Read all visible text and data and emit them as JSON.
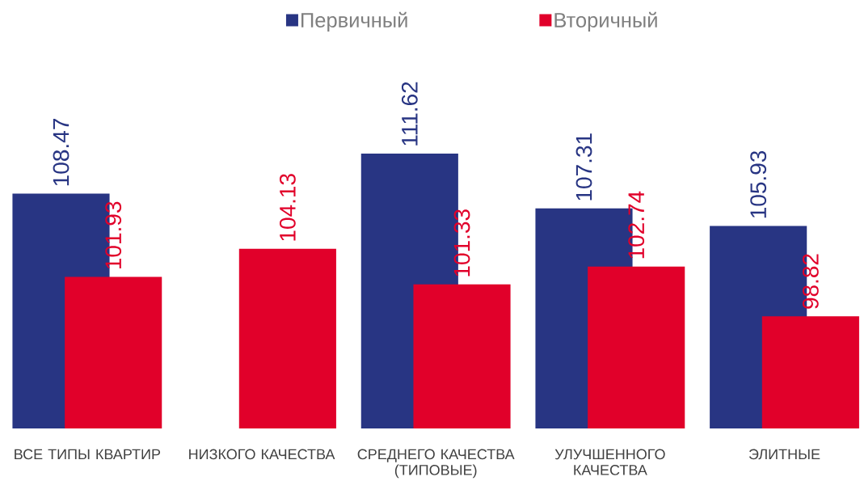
{
  "chart_data": {
    "type": "bar",
    "categories": [
      "ВСЕ ТИПЫ КВАРТИР",
      "НИЗКОГО КАЧЕСТВА",
      "СРЕДНЕГО КАЧЕСТВА (ТИПОВЫЕ)",
      "УЛУЧШЕННОГО КАЧЕСТВА",
      "ЭЛИТНЫЕ"
    ],
    "series": [
      {
        "name": "Первичный",
        "color": "#283583",
        "values": [
          108.47,
          null,
          111.62,
          107.31,
          105.93
        ]
      },
      {
        "name": "Вторичный",
        "color": "#e1002a",
        "values": [
          101.93,
          104.13,
          101.33,
          102.74,
          98.82
        ]
      }
    ],
    "ylim": [
      90,
      111.62
    ],
    "data_labels": true,
    "legend": "top"
  }
}
